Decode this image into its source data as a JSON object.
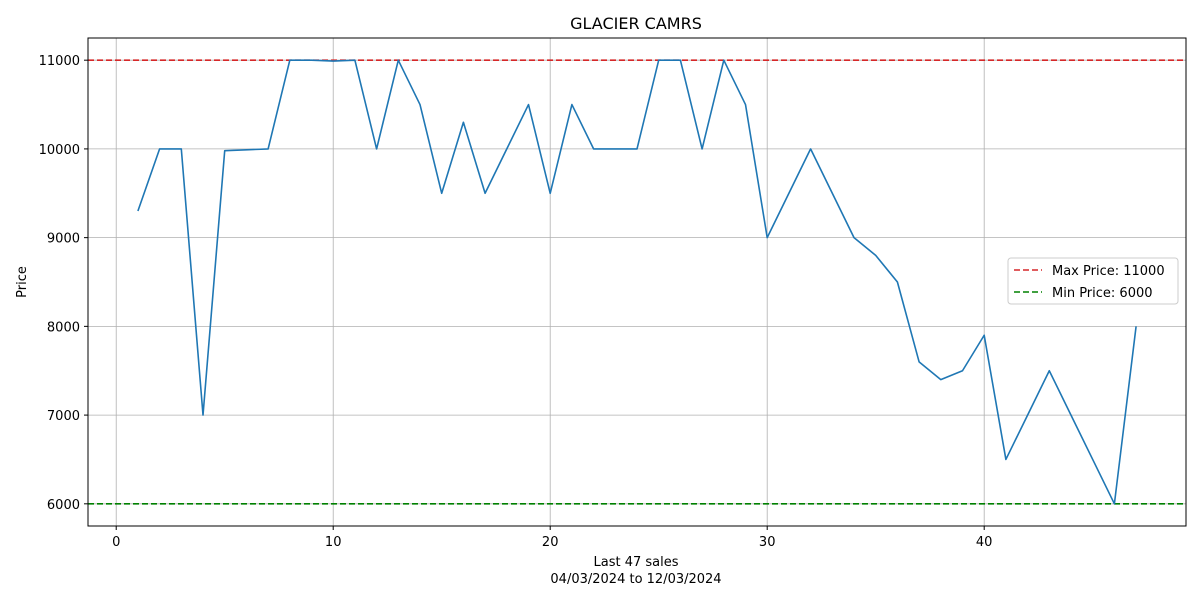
{
  "chart_data": {
    "type": "line",
    "title": "GLACIER CAMRS",
    "xlabel_line1": "Last 47 sales",
    "xlabel_line2": "04/03/2024 to 12/03/2024",
    "ylabel": "Price",
    "xlim": [
      -1.3,
      49.3
    ],
    "ylim": [
      5750,
      11250
    ],
    "x_ticks": [
      0,
      10,
      20,
      30,
      40
    ],
    "y_ticks": [
      6000,
      7000,
      8000,
      9000,
      10000,
      11000
    ],
    "grid": true,
    "legend_position": "right",
    "colors": {
      "series": "#1f77b4",
      "max": "#d62728",
      "min": "#008000"
    },
    "reference_lines": [
      {
        "name": "Max Price: 11000",
        "value": 11000,
        "color": "#d62728"
      },
      {
        "name": "Min Price: 6000",
        "value": 6000,
        "color": "#008000"
      }
    ],
    "series": [
      {
        "x": [
          1,
          2,
          3,
          4,
          5,
          6,
          7,
          8,
          9,
          10,
          11,
          12,
          13,
          14,
          15,
          16,
          17,
          18,
          19,
          20,
          21,
          22,
          23,
          24,
          25,
          26,
          27,
          28,
          29,
          30,
          31,
          32,
          33,
          34,
          35,
          36,
          37,
          38,
          39,
          40,
          41,
          42,
          43,
          44,
          45,
          46,
          47
        ],
        "values": [
          9300,
          10000,
          10000,
          7000,
          9980,
          9990,
          10000,
          11000,
          11000,
          10990,
          11000,
          10000,
          11000,
          10500,
          9500,
          10300,
          9500,
          10000,
          10500,
          9500,
          10500,
          10000,
          10000,
          10000,
          11000,
          11000,
          10000,
          11000,
          10500,
          9000,
          9500,
          10000,
          9500,
          9000,
          8800,
          8500,
          7600,
          7400,
          7500,
          7900,
          6500,
          7000,
          7500,
          7000,
          6500,
          6000,
          8000
        ]
      }
    ]
  }
}
